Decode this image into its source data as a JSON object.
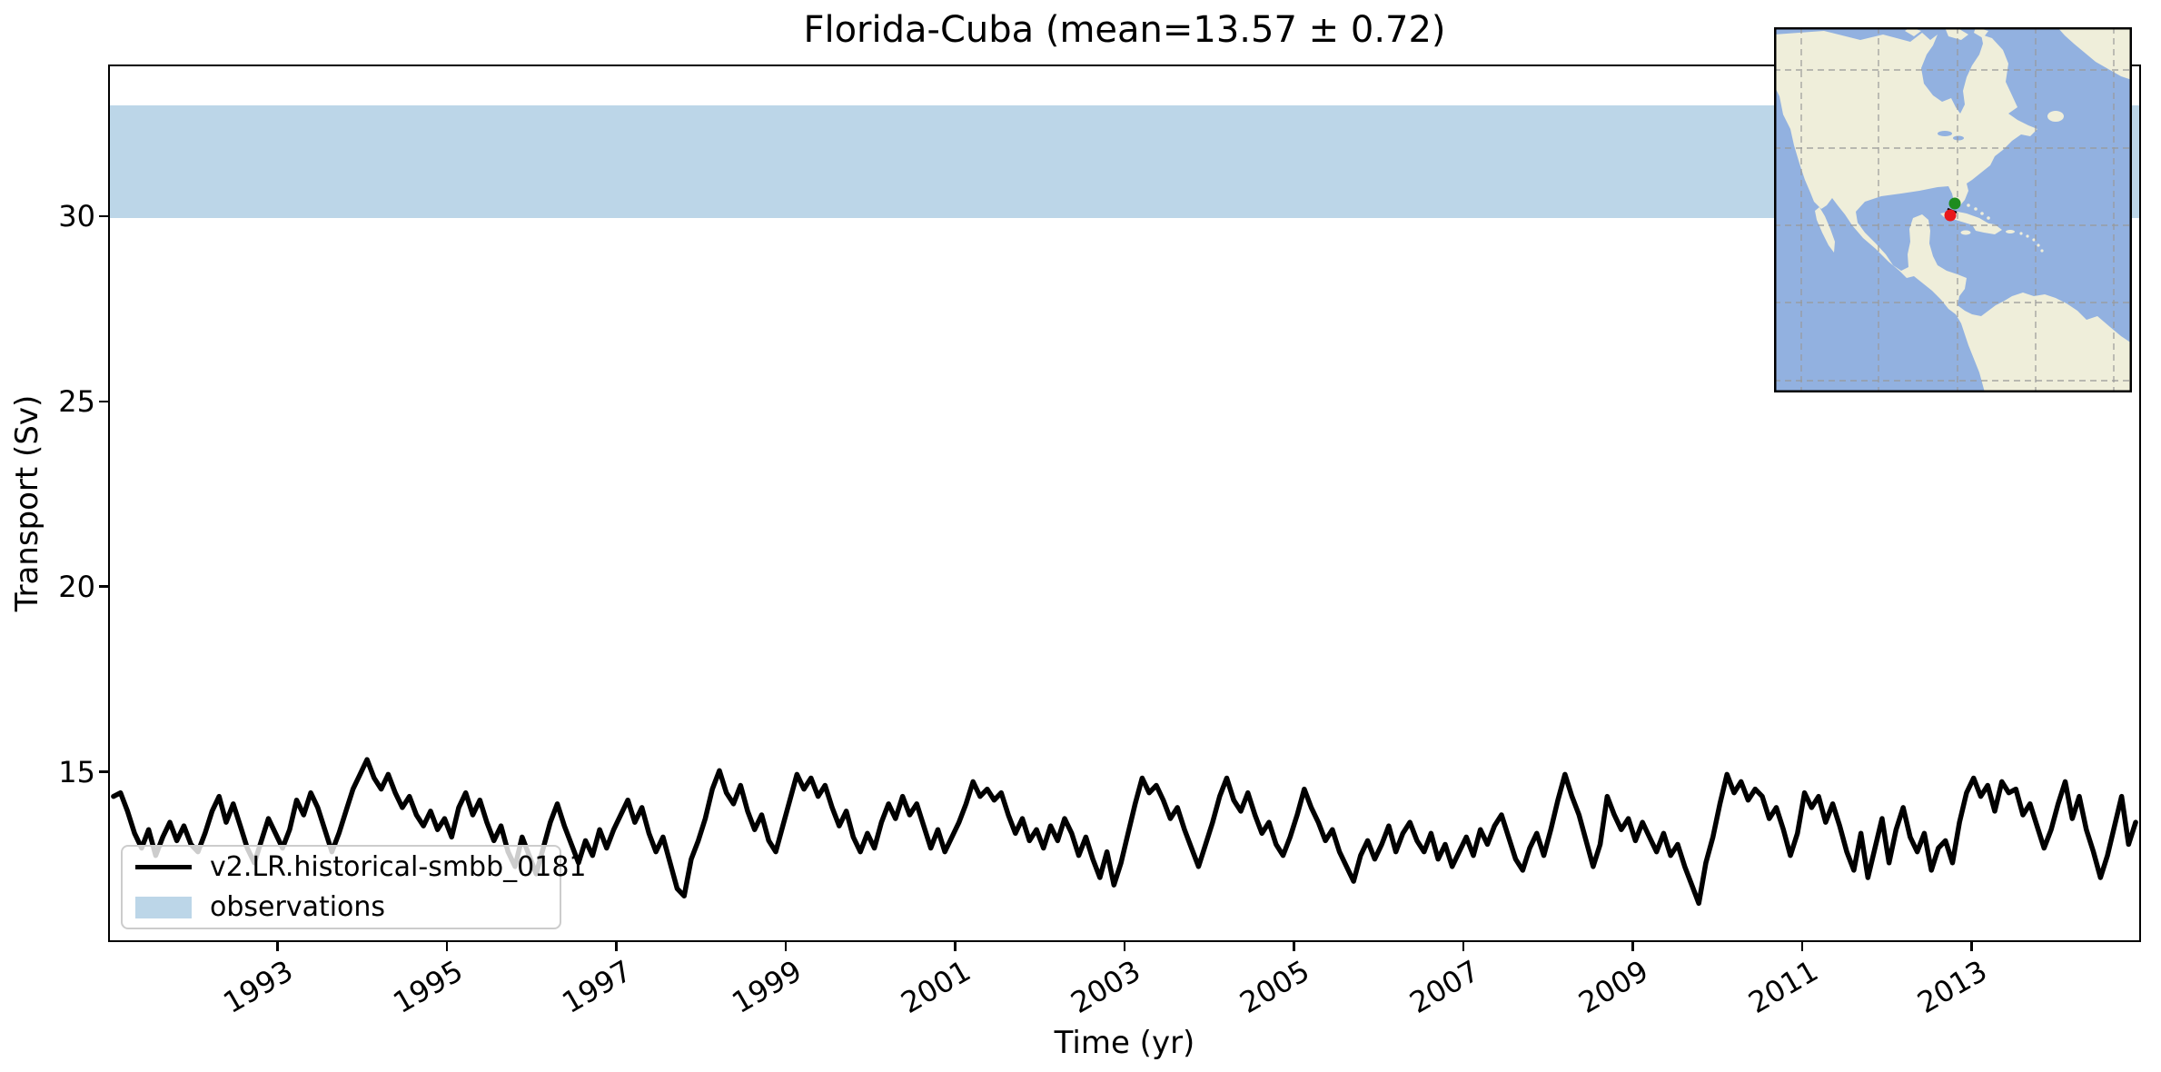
{
  "figure": {
    "title": "Florida-Cuba (mean=13.57 ± 0.72)"
  },
  "axes": {
    "xlabel": "Time (yr)",
    "ylabel": "Transport (Sv)"
  },
  "legend": {
    "entries": [
      {
        "label": "v2.LR.historical-smbb_0181",
        "type": "line"
      },
      {
        "label": "observations",
        "type": "band"
      }
    ]
  },
  "colors": {
    "series_line": "#000000",
    "observations_band": "#bcd6e8",
    "map_ocean": "#92b1e0",
    "map_land": "#efeeda",
    "map_grid": "#9a9a9a",
    "map_border": "#000000",
    "marker_green": "#1e8c1e",
    "marker_red": "#e8191c"
  },
  "inset_map": {
    "markers": [
      {
        "icon": "florida-marker-icon",
        "color_key": "marker_green"
      },
      {
        "icon": "cuba-marker-icon",
        "color_key": "marker_red"
      }
    ]
  },
  "chart_data": {
    "type": "line",
    "title": "Florida-Cuba (mean=13.57 ± 0.72)",
    "xlabel": "Time (yr)",
    "ylabel": "Transport (Sv)",
    "xlim": [
      1991.0,
      2015.0
    ],
    "ylim": [
      10.4,
      34.1
    ],
    "xticks": [
      1993,
      1995,
      1997,
      1999,
      2001,
      2003,
      2005,
      2007,
      2009,
      2011,
      2013
    ],
    "yticks": [
      15,
      20,
      25,
      30
    ],
    "grid": false,
    "legend_position": "lower left",
    "mean": 13.57,
    "std": 0.72,
    "observations_band": {
      "label": "observations",
      "ymin": 30.0,
      "ymax": 33.05
    },
    "series": [
      {
        "name": "v2.LR.historical-smbb_0181",
        "start_year": 1991,
        "cadence_months": 1,
        "values": [
          14.3,
          14.4,
          13.9,
          13.3,
          12.9,
          13.4,
          12.7,
          13.2,
          13.6,
          13.1,
          13.5,
          13.0,
          12.8,
          13.3,
          13.9,
          14.3,
          13.6,
          14.1,
          13.5,
          12.9,
          12.5,
          13.1,
          13.7,
          13.3,
          12.9,
          13.4,
          14.2,
          13.8,
          14.4,
          14.0,
          13.4,
          12.8,
          13.3,
          13.9,
          14.5,
          14.9,
          15.3,
          14.8,
          14.5,
          14.9,
          14.4,
          14.0,
          14.3,
          13.8,
          13.5,
          13.9,
          13.4,
          13.7,
          13.2,
          14.0,
          14.4,
          13.8,
          14.2,
          13.6,
          13.1,
          13.5,
          12.8,
          12.4,
          13.2,
          12.7,
          12.2,
          12.9,
          13.6,
          14.1,
          13.5,
          13.0,
          12.5,
          13.1,
          12.7,
          13.4,
          12.9,
          13.4,
          13.8,
          14.2,
          13.6,
          14.0,
          13.3,
          12.8,
          13.2,
          12.5,
          11.8,
          11.6,
          12.6,
          13.1,
          13.7,
          14.5,
          15.0,
          14.4,
          14.1,
          14.6,
          13.9,
          13.4,
          13.8,
          13.1,
          12.8,
          13.5,
          14.2,
          14.9,
          14.5,
          14.8,
          14.3,
          14.6,
          14.0,
          13.5,
          13.9,
          13.2,
          12.8,
          13.3,
          12.9,
          13.6,
          14.1,
          13.7,
          14.3,
          13.8,
          14.1,
          13.5,
          12.9,
          13.4,
          12.8,
          13.2,
          13.6,
          14.1,
          14.7,
          14.3,
          14.5,
          14.2,
          14.4,
          13.8,
          13.3,
          13.7,
          13.1,
          13.4,
          12.9,
          13.5,
          13.1,
          13.7,
          13.3,
          12.7,
          13.2,
          12.6,
          12.1,
          12.8,
          11.9,
          12.5,
          13.3,
          14.1,
          14.8,
          14.4,
          14.6,
          14.2,
          13.7,
          14.0,
          13.4,
          12.9,
          12.4,
          13.0,
          13.6,
          14.3,
          14.8,
          14.2,
          13.9,
          14.4,
          13.8,
          13.3,
          13.6,
          13.0,
          12.7,
          13.2,
          13.8,
          14.5,
          14.0,
          13.6,
          13.1,
          13.4,
          12.8,
          12.4,
          12.0,
          12.7,
          13.1,
          12.6,
          13.0,
          13.5,
          12.8,
          13.3,
          13.6,
          13.1,
          12.8,
          13.3,
          12.6,
          13.0,
          12.4,
          12.8,
          13.2,
          12.7,
          13.4,
          13.0,
          13.5,
          13.8,
          13.2,
          12.6,
          12.3,
          12.9,
          13.3,
          12.7,
          13.4,
          14.2,
          14.9,
          14.3,
          13.8,
          13.1,
          12.4,
          13.0,
          14.3,
          13.8,
          13.4,
          13.7,
          13.1,
          13.6,
          13.2,
          12.8,
          13.3,
          12.7,
          13.0,
          12.4,
          11.9,
          11.4,
          12.5,
          13.2,
          14.1,
          14.9,
          14.4,
          14.7,
          14.2,
          14.5,
          14.3,
          13.7,
          14.0,
          13.4,
          12.7,
          13.3,
          14.4,
          14.0,
          14.3,
          13.6,
          14.1,
          13.5,
          12.8,
          12.3,
          13.3,
          12.1,
          12.9,
          13.7,
          12.5,
          13.4,
          14.0,
          13.2,
          12.8,
          13.3,
          12.3,
          12.9,
          13.1,
          12.5,
          13.6,
          14.4,
          14.8,
          14.3,
          14.6,
          13.9,
          14.7,
          14.4,
          14.5,
          13.8,
          14.1,
          13.5,
          12.9,
          13.4,
          14.1,
          14.7,
          13.7,
          14.3,
          13.4,
          12.8,
          12.1,
          12.7,
          13.5,
          14.3,
          13.0,
          13.6
        ]
      }
    ]
  }
}
